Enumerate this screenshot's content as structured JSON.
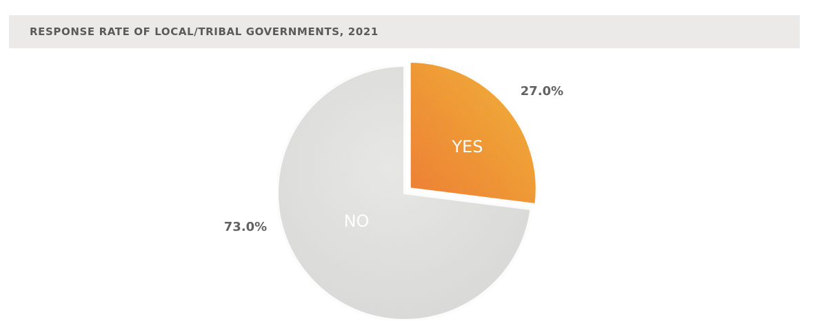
{
  "header": {
    "title": "RESPONSE RATE OF LOCAL/TRIBAL GOVERNMENTS, 2021"
  },
  "colors": {
    "yes_start": "#f4b323",
    "yes_end": "#ef7a1a",
    "no_light": "#e9e9e8",
    "no_dark": "#d9d9d8"
  },
  "chart_data": {
    "type": "pie",
    "title": "RESPONSE RATE OF LOCAL/TRIBAL GOVERNMENTS, 2021",
    "start_angle_deg": 0,
    "direction": "clockwise",
    "exploded": [
      "YES"
    ],
    "slices": [
      {
        "label": "YES",
        "value": 27.0,
        "value_label": "27.0%",
        "color": "#f4a81f"
      },
      {
        "label": "NO",
        "value": 73.0,
        "value_label": "73.0%",
        "color": "#e4e4e3"
      }
    ]
  }
}
